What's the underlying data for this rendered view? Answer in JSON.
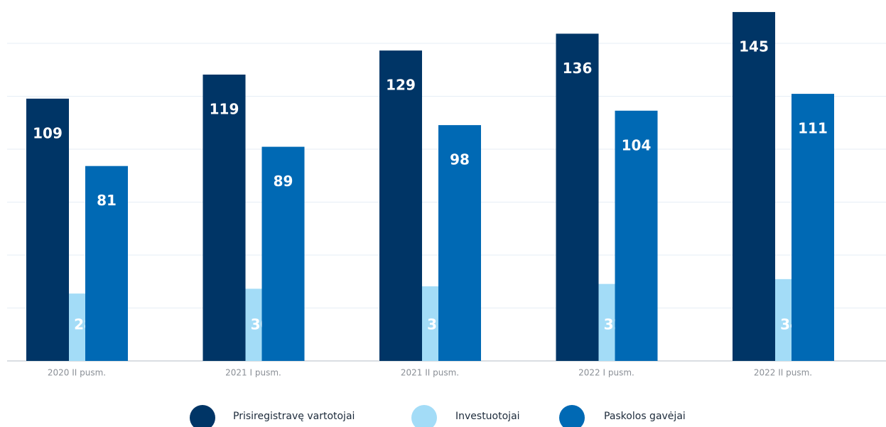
{
  "chart_data": {
    "type": "bar",
    "categories": [
      "2020 II pusm.",
      "2021 I pusm.",
      "2021 II pusm.",
      "2022 I pusm.",
      "2022 II pusm."
    ],
    "series": [
      {
        "name": "Prisiregistravę vartotojai",
        "color": "#003566",
        "values": [
          109,
          119,
          129,
          136,
          145
        ]
      },
      {
        "name": "Investuotojai",
        "color": "#a3dcf7",
        "values": [
          28,
          30,
          31,
          32,
          34
        ]
      },
      {
        "name": "Paskolos gavėjai",
        "color": "#0069b4",
        "values": [
          81,
          89,
          98,
          104,
          111
        ]
      }
    ],
    "ylim": [
      0,
      150
    ],
    "yticks": [
      0,
      22,
      44,
      66,
      88,
      110,
      132
    ],
    "grid": true,
    "legend": "bottom"
  }
}
